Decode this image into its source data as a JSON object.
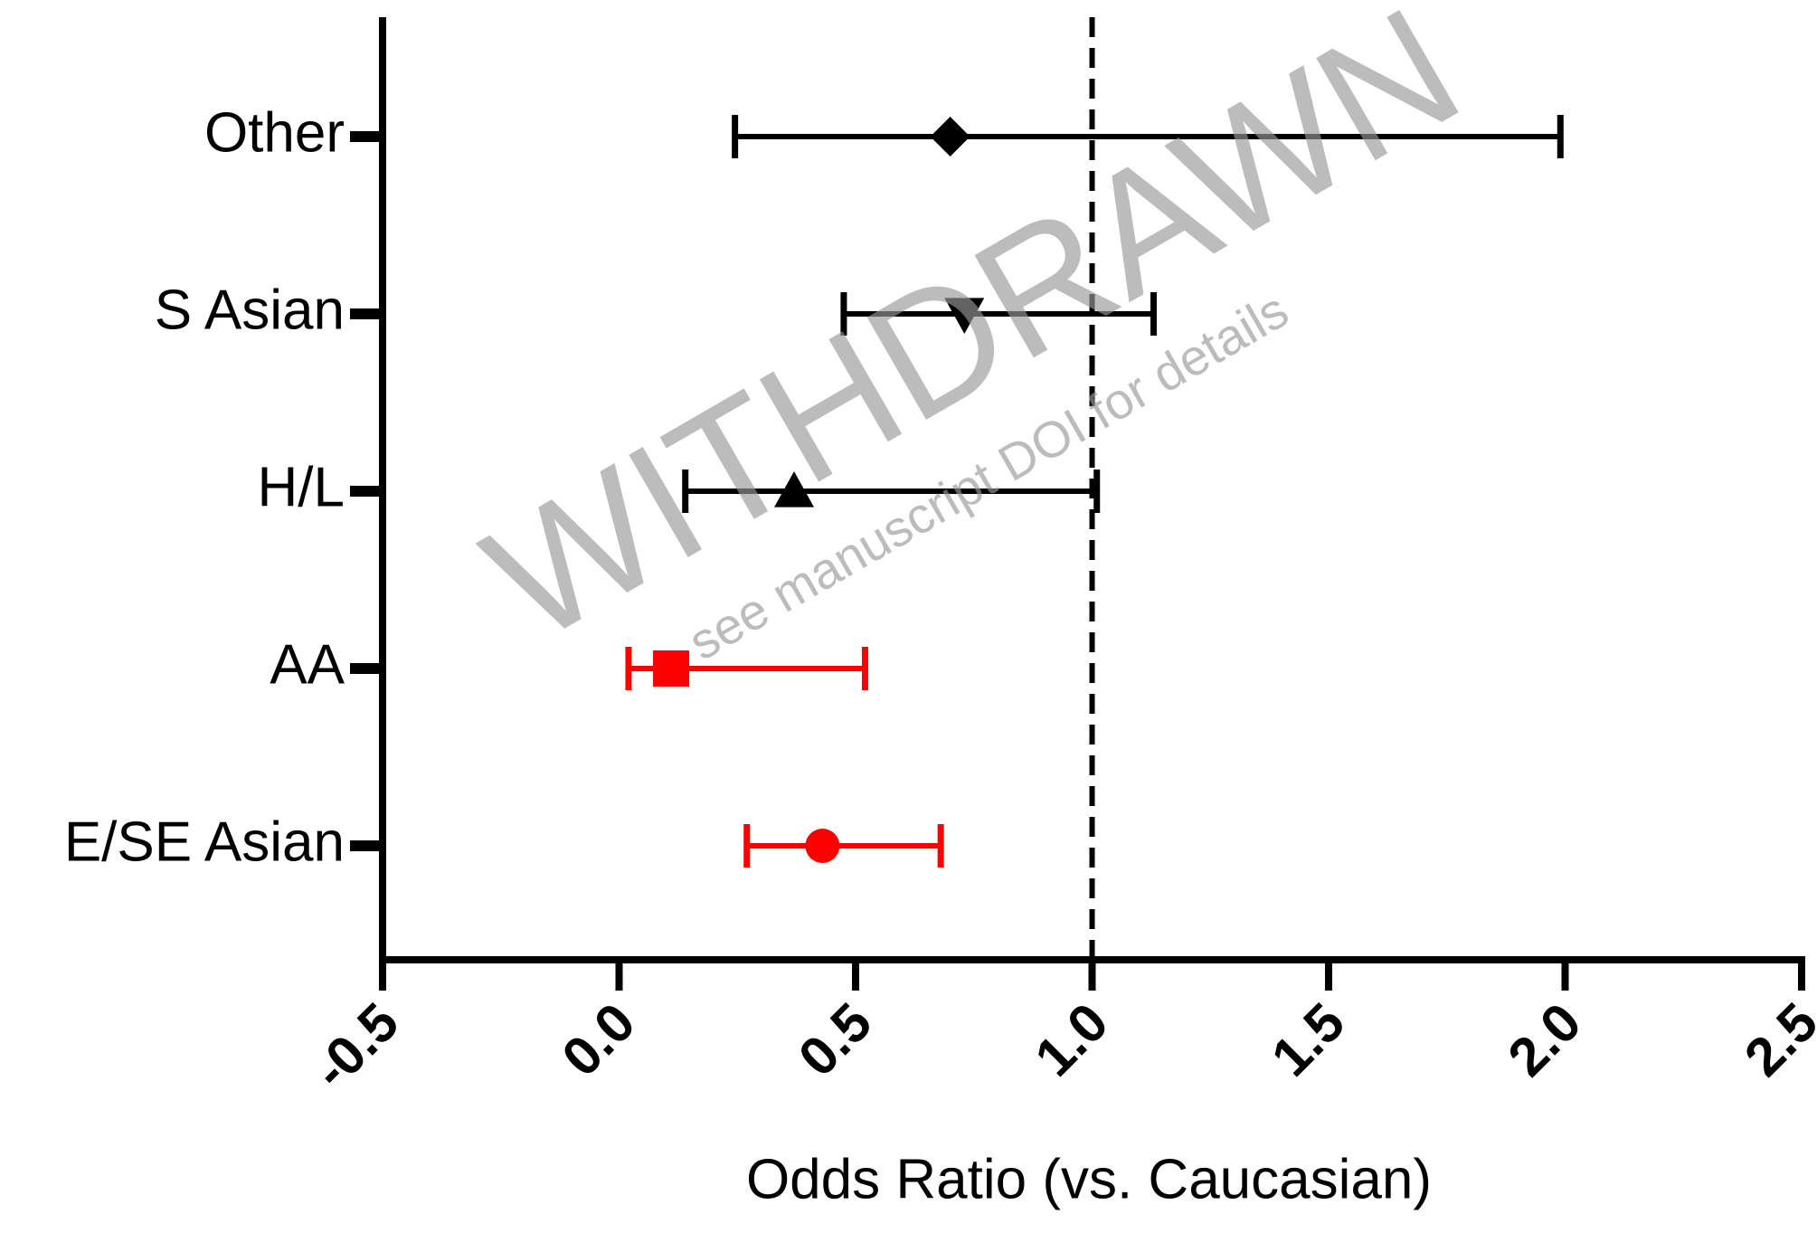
{
  "chart_data": {
    "type": "forest",
    "categories": [
      "Other",
      "S Asian",
      "H/L",
      "AA",
      "E/SE Asian"
    ],
    "values": [
      0.7,
      0.73,
      0.37,
      0.11,
      0.43
    ],
    "lower": [
      0.245,
      0.475,
      0.14,
      0.02,
      0.27
    ],
    "upper": [
      1.99,
      1.13,
      1.01,
      0.52,
      0.68
    ],
    "colors": [
      "#000000",
      "#000000",
      "#000000",
      "#ff0000",
      "#ff0000"
    ],
    "markers": [
      "diamond",
      "triangle-down",
      "triangle-up",
      "square",
      "circle"
    ],
    "xlim": [
      -0.5,
      2.5
    ],
    "xticks": [
      -0.5,
      {
        "value": 0,
        "label": "0.0"
      },
      0.5,
      {
        "value": 1,
        "label": "1.0"
      },
      1.5,
      {
        "value": 2,
        "label": "2.0"
      },
      2.5
    ],
    "reference_line": 1,
    "xlabel": "Odds Ratio (vs. Caucasian)",
    "watermark": "WITHDRAWN",
    "watermark_note": "see manuscript DOI for details"
  }
}
